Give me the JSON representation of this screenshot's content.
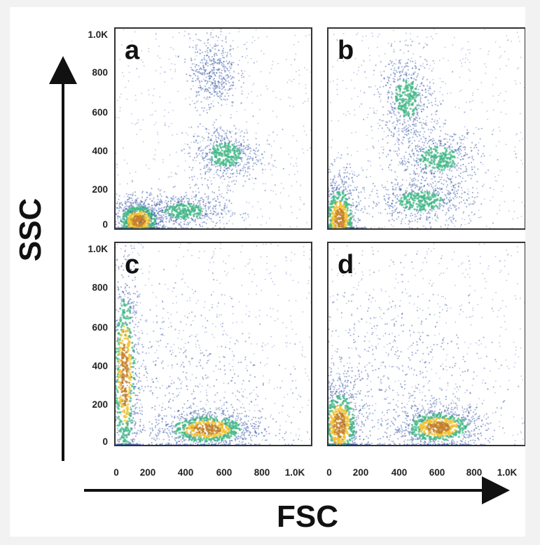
{
  "chart_data": {
    "type": "scatter",
    "style": "density scatter (blue → green → yellow → orange)",
    "xlabel": "FSC",
    "ylabel": "SSC",
    "xlim": [
      0,
      1000
    ],
    "ylim": [
      0,
      1000
    ],
    "x_ticks": [
      "0",
      "200",
      "400",
      "600",
      "800",
      "1.0K"
    ],
    "y_ticks": [
      "0",
      "200",
      "400",
      "600",
      "800",
      "1.0K"
    ],
    "grid": false,
    "legend": "none",
    "colors": {
      "low": "#3b5ba9",
      "mid": "#46b88a",
      "high": "#f2c231",
      "peak": "#c4802a"
    },
    "panels": [
      {
        "label": "a",
        "populations": [
          {
            "center": [
              120,
              40
            ],
            "spread": [
              70,
              60
            ],
            "density": "high"
          },
          {
            "center": [
              350,
              90
            ],
            "spread": [
              110,
              45
            ],
            "density": "medium"
          },
          {
            "center": [
              560,
              370
            ],
            "spread": [
              90,
              70
            ],
            "density": "medium"
          },
          {
            "center": [
              500,
              780
            ],
            "spread": [
              60,
              90
            ],
            "density": "low"
          }
        ]
      },
      {
        "label": "b",
        "populations": [
          {
            "center": [
              60,
              40
            ],
            "spread": [
              50,
              120
            ],
            "density": "high"
          },
          {
            "center": [
              470,
              140
            ],
            "spread": [
              130,
              55
            ],
            "density": "medium"
          },
          {
            "center": [
              560,
              350
            ],
            "spread": [
              110,
              70
            ],
            "density": "medium"
          },
          {
            "center": [
              400,
              650
            ],
            "spread": [
              70,
              110
            ],
            "density": "medium"
          }
        ]
      },
      {
        "label": "c",
        "populations": [
          {
            "center": [
              50,
              350
            ],
            "spread": [
              40,
              300
            ],
            "density": "high"
          },
          {
            "center": [
              470,
              80
            ],
            "spread": [
              140,
              50
            ],
            "density": "high"
          },
          {
            "center": [
              350,
              300
            ],
            "spread": [
              230,
              230
            ],
            "density": "low"
          }
        ]
      },
      {
        "label": "d",
        "populations": [
          {
            "center": [
              60,
              100
            ],
            "spread": [
              60,
              120
            ],
            "density": "high"
          },
          {
            "center": [
              560,
              90
            ],
            "spread": [
              120,
              55
            ],
            "density": "high"
          },
          {
            "center": [
              350,
              350
            ],
            "spread": [
              250,
              230
            ],
            "density": "low"
          }
        ]
      }
    ]
  }
}
